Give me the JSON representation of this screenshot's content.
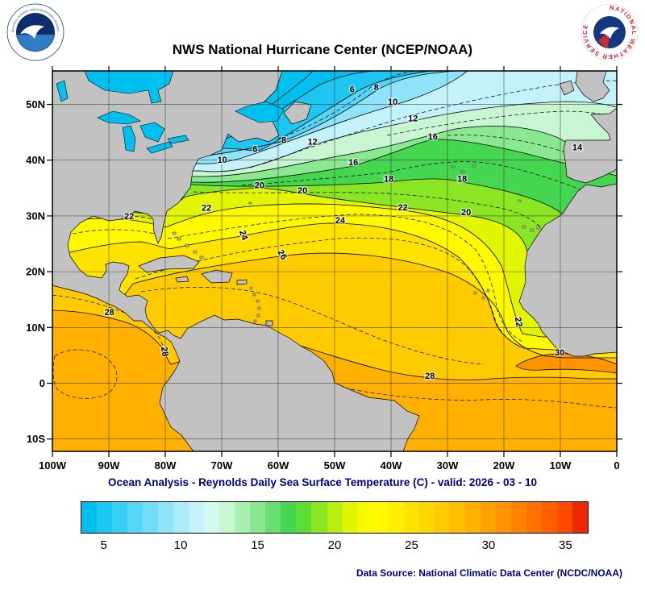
{
  "header": {
    "title": "NWS National Hurricane Center (NCEP/NOAA)"
  },
  "logos": {
    "noaa": {
      "ring_top": "NATIONAL OCEANIC AND ATMOSPHERIC ADMINISTRATION",
      "ring_bottom": "U.S. DEPARTMENT OF COMMERCE"
    },
    "nws": {
      "ring": "NATIONAL WEATHER SERVICE"
    }
  },
  "subtitle": "Ocean Analysis - Reynolds Daily Sea Surface Temperature (C) - valid: 2026 - 03 - 10",
  "footer": "Data Source: National Climatic Data Center (NCDC/NOAA)",
  "map": {
    "x_ticks": [
      {
        "label": "100W",
        "lon": -100
      },
      {
        "label": "90W",
        "lon": -90
      },
      {
        "label": "80W",
        "lon": -80
      },
      {
        "label": "70W",
        "lon": -70
      },
      {
        "label": "60W",
        "lon": -60
      },
      {
        "label": "50W",
        "lon": -50
      },
      {
        "label": "40W",
        "lon": -40
      },
      {
        "label": "30W",
        "lon": -30
      },
      {
        "label": "20W",
        "lon": -20
      },
      {
        "label": "10W",
        "lon": -10
      },
      {
        "label": "0",
        "lon": 0
      }
    ],
    "y_ticks": [
      {
        "label": "50N",
        "lat": 50
      },
      {
        "label": "40N",
        "lat": 40
      },
      {
        "label": "30N",
        "lat": 30
      },
      {
        "label": "20N",
        "lat": 20
      },
      {
        "label": "10N",
        "lat": 10
      },
      {
        "label": "0",
        "lat": 0
      },
      {
        "label": "10S",
        "lat": -10
      }
    ],
    "contour_labels": [
      {
        "t": "6",
        "lon": -46.9,
        "lat": 52.2
      },
      {
        "t": "8",
        "lon": -42.6,
        "lat": 52.5
      },
      {
        "t": "10",
        "lon": -39.7,
        "lat": 49.9
      },
      {
        "t": "12",
        "lon": -36.1,
        "lat": 47.0
      },
      {
        "t": "12",
        "lon": -53.9,
        "lat": 42.8
      },
      {
        "t": "8",
        "lon": -59.0,
        "lat": 43.1
      },
      {
        "t": "6",
        "lon": -64.1,
        "lat": 41.5
      },
      {
        "t": "10",
        "lon": -69.9,
        "lat": 39.5
      },
      {
        "t": "16",
        "lon": -46.7,
        "lat": 39.1
      },
      {
        "t": "16",
        "lon": -32.6,
        "lat": 43.7
      },
      {
        "t": "14",
        "lon": -7.0,
        "lat": 41.8
      },
      {
        "t": "18",
        "lon": -40.4,
        "lat": 36.1
      },
      {
        "t": "18",
        "lon": -27.4,
        "lat": 36.1
      },
      {
        "t": "20",
        "lon": -63.3,
        "lat": 35.0
      },
      {
        "t": "20",
        "lon": -55.7,
        "lat": 34.0
      },
      {
        "t": "20",
        "lon": -26.7,
        "lat": 30.1
      },
      {
        "t": "22",
        "lon": -86.4,
        "lat": 29.4
      },
      {
        "t": "22",
        "lon": -72.7,
        "lat": 30.9
      },
      {
        "t": "22",
        "lon": -37.9,
        "lat": 31.0
      },
      {
        "t": "22",
        "lon": -17.9,
        "lat": 10.9,
        "rot": 80
      },
      {
        "t": "24",
        "lon": -66.6,
        "lat": 26.4,
        "rot": 70
      },
      {
        "t": "24",
        "lon": -49.0,
        "lat": 28.7
      },
      {
        "t": "26",
        "lon": -59.7,
        "lat": 22.8,
        "rot": 60
      },
      {
        "t": "28",
        "lon": -89.9,
        "lat": 12.2
      },
      {
        "t": "28",
        "lon": -80.6,
        "lat": 5.6,
        "rot": 80
      },
      {
        "t": "28",
        "lon": -33.1,
        "lat": 0.8
      },
      {
        "t": "30",
        "lon": -10.1,
        "lat": 5.0
      }
    ]
  },
  "colorbar": {
    "min": 3.5,
    "max": 36.5,
    "ticks": [
      5,
      10,
      15,
      20,
      25,
      30,
      35
    ],
    "colors": [
      "#00C0F0",
      "#1CC8F2",
      "#38CFF4",
      "#55D6F6",
      "#72DDF8",
      "#8FE4FA",
      "#ABEBFC",
      "#C4F2FA",
      "#D4F8EE",
      "#C8F6D2",
      "#AAF0B0",
      "#8AE890",
      "#68DF70",
      "#46D750",
      "#5CDC34",
      "#8AE522",
      "#B8EE10",
      "#E2F503",
      "#F8FA00",
      "#FFF800",
      "#FFEE00",
      "#FFE300",
      "#FFD700",
      "#FFCB00",
      "#FFBE00",
      "#FFB000",
      "#FFA200",
      "#FF9300",
      "#FF8300",
      "#FF7200",
      "#FF5F00",
      "#FF4A00",
      "#EE2800"
    ]
  },
  "chart_data": {
    "type": "heatmap",
    "variable": "sea_surface_temperature",
    "units": "C",
    "valid_date": "2026 - 03 - 10",
    "lon_domain": [
      "100W",
      "0"
    ],
    "lat_domain": [
      "12S",
      "56N"
    ],
    "contour_interval_c": 2,
    "labeled_isotherms_c": [
      6,
      8,
      10,
      12,
      14,
      16,
      18,
      20,
      22,
      24,
      26,
      28,
      30
    ],
    "colorbar_range_c": [
      3.5,
      36.5
    ],
    "colorbar_ticks_c": [
      5,
      10,
      15,
      20,
      25,
      30,
      35
    ]
  }
}
